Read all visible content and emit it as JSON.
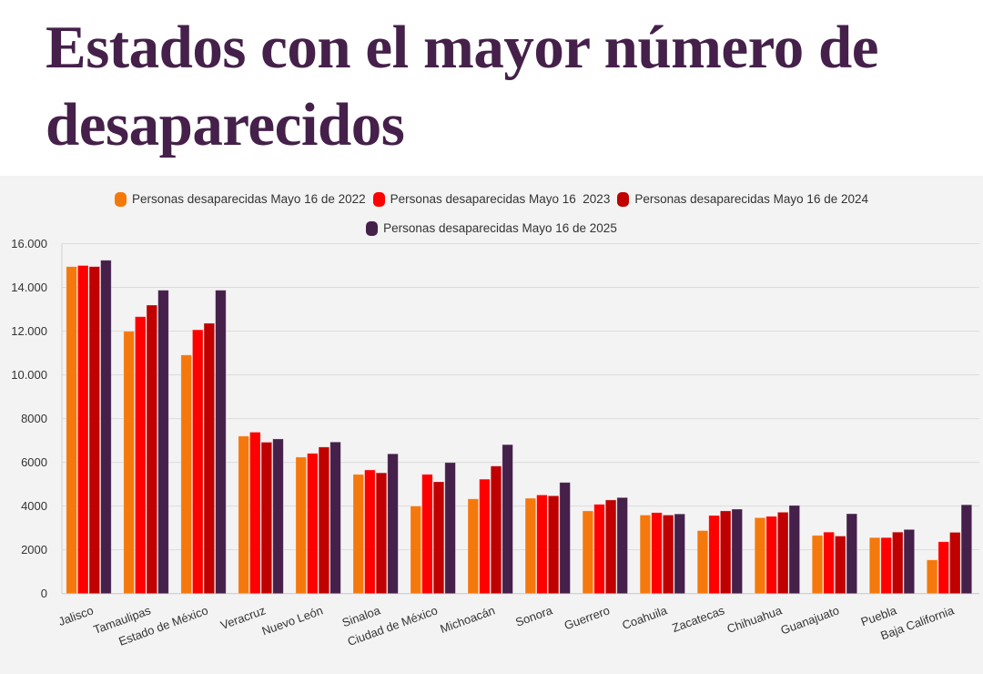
{
  "title": "Estados con el mayor número de desaparecidos",
  "chart_data": {
    "type": "bar",
    "title": "Estados con el mayor número de desaparecidos",
    "xlabel": "",
    "ylabel": "",
    "ylim": [
      0,
      16000
    ],
    "y_ticks": [
      0,
      2000,
      4000,
      6000,
      8000,
      10000,
      12000,
      14000,
      16000
    ],
    "y_tick_labels": [
      "0",
      "2000",
      "4000",
      "6000",
      "8000",
      "10.000",
      "12.000",
      "14.000",
      "16.000"
    ],
    "grid": true,
    "legend_position": "top",
    "categories": [
      "Jalisco",
      "Tamaulipas",
      "Estado de México",
      "Veracruz",
      "Nuevo León",
      "Sinaloa",
      "Ciudad de México",
      "Michoacán",
      "Sonora",
      "Guerrero",
      "Coahuila",
      "Zacatecas",
      "Chihuahua",
      "Guanajuato",
      "Puebla",
      "Baja California"
    ],
    "series": [
      {
        "name": "Personas desaparecidas Mayo 16 de 2022",
        "color": "#f5780c",
        "values": [
          14950,
          11990,
          10910,
          7200,
          6240,
          5450,
          4000,
          4330,
          4360,
          3780,
          3590,
          2880,
          3470,
          2660,
          2560,
          1540
        ]
      },
      {
        "name": "Personas desaparecidas Mayo 16  2023",
        "color": "#ff0000",
        "values": [
          15000,
          12660,
          12060,
          7380,
          6410,
          5650,
          5450,
          5230,
          4510,
          4080,
          3700,
          3570,
          3530,
          2810,
          2560,
          2370
        ]
      },
      {
        "name": "Personas desaparecidas Mayo 16 de 2024",
        "color": "#c00000",
        "values": [
          14950,
          13190,
          12360,
          6920,
          6700,
          5520,
          5110,
          5830,
          4470,
          4280,
          3590,
          3780,
          3720,
          2630,
          2810,
          2800
        ]
      },
      {
        "name": "Personas desaparecidas Mayo 16 de 2025",
        "color": "#45204a",
        "values": [
          15240,
          13870,
          13870,
          7070,
          6930,
          6390,
          5990,
          6810,
          5080,
          4390,
          3640,
          3860,
          4030,
          3650,
          2930,
          4060
        ]
      }
    ]
  }
}
